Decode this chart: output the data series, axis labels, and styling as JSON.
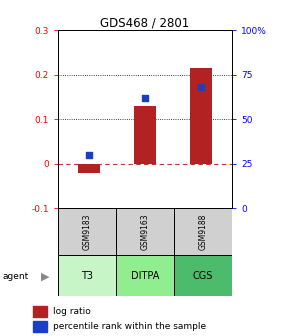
{
  "title": "GDS468 / 2801",
  "samples": [
    "GSM9183",
    "GSM9163",
    "GSM9188"
  ],
  "agents": [
    "T3",
    "DITPA",
    "CGS"
  ],
  "log_ratios": [
    -0.02,
    0.13,
    0.215
  ],
  "percentile_ranks_pct": [
    30,
    62,
    68
  ],
  "ylim_left": [
    -0.1,
    0.3
  ],
  "ylim_right": [
    0,
    100
  ],
  "yticks_left": [
    -0.1,
    0.0,
    0.1,
    0.2,
    0.3
  ],
  "ytick_labels_left": [
    "-0.1",
    "0",
    "0.1",
    "0.2",
    "0.3"
  ],
  "yticks_right": [
    0,
    25,
    50,
    75,
    100
  ],
  "ytick_labels_right": [
    "0",
    "25",
    "50",
    "75",
    "100%"
  ],
  "bar_color": "#b22222",
  "dot_color": "#1a3fc4",
  "agent_colors": [
    "#c8f5c8",
    "#90ee90",
    "#4cbb6c"
  ],
  "sample_bg": "#d0d0d0",
  "zero_line_color": "#c0392b",
  "bar_width": 0.38,
  "legend_bar_color": "#b22222",
  "legend_dot_color": "#1a3fc4"
}
